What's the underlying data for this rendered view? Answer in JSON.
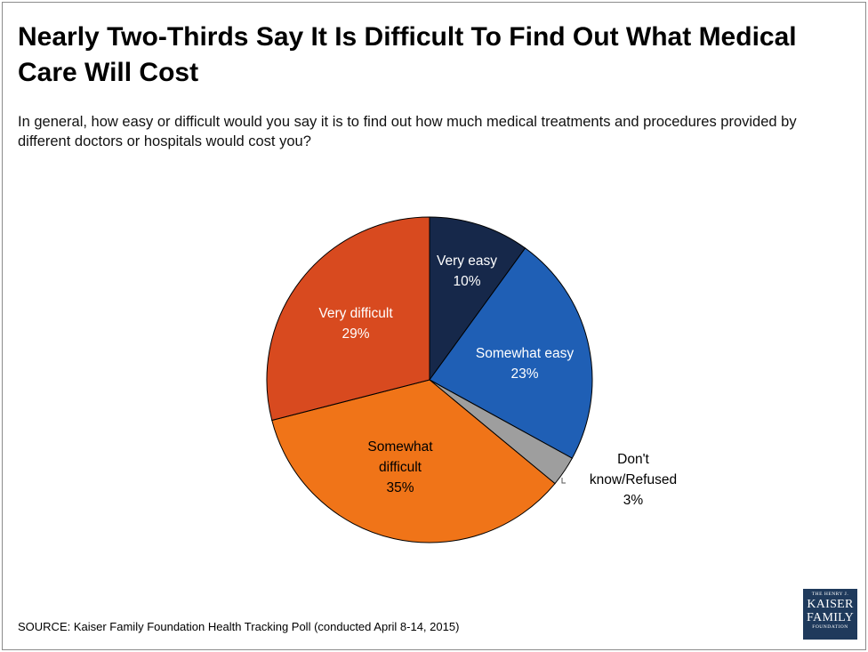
{
  "title": "Nearly Two-Thirds Say It Is Difficult To Find Out What Medical Care Will Cost",
  "subtitle": "In general, how easy or difficult would you say it is to find out how much medical treatments and procedures provided by different doctors or hospitals would cost you?",
  "source": "SOURCE: Kaiser Family Foundation Health Tracking Poll (conducted April 8-14, 2015)",
  "logo": {
    "line1": "THE HENRY J.",
    "line2": "KAISER",
    "line3": "FAMILY",
    "line4": "FOUNDATION"
  },
  "chart_data": {
    "type": "pie",
    "title": "",
    "start": "12 o'clock",
    "direction": "clockwise",
    "slices": [
      {
        "label": "Very easy",
        "value": 10,
        "value_label": "10%",
        "color": "#16284a",
        "label_color": "#ffffff"
      },
      {
        "label": "Somewhat easy",
        "value": 23,
        "value_label": "23%",
        "color": "#1f5fb5",
        "label_color": "#ffffff"
      },
      {
        "label": "Don't know/Refused",
        "value": 3,
        "value_label": "3%",
        "color": "#9e9e9e",
        "label_color": "#000000",
        "label_outside": true
      },
      {
        "label": "Somewhat difficult",
        "value": 35,
        "value_label": "35%",
        "color": "#f07418",
        "label_color": "#000000"
      },
      {
        "label": "Very difficult",
        "value": 29,
        "value_label": "29%",
        "color": "#d84a1f",
        "label_color": "#ffffff"
      }
    ]
  }
}
